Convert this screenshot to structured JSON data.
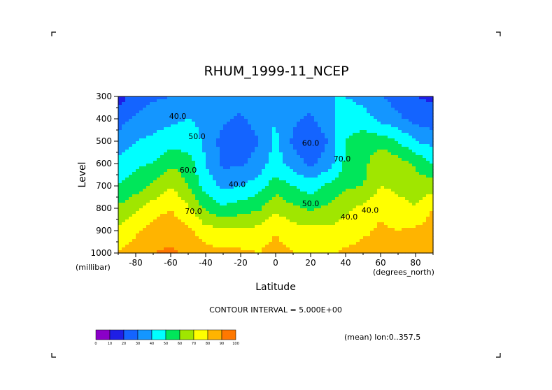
{
  "chart_data": {
    "type": "heatmap",
    "title": "RHUM_1999-11_NCEP",
    "xlabel": "Latitude",
    "ylabel": "Level",
    "x_units": "(degrees_north)",
    "y_units": "(millibar)",
    "xlim": [
      -90,
      90
    ],
    "ylim": [
      1000,
      300
    ],
    "x_ticks": [
      "-80",
      "-60",
      "-40",
      "-20",
      "0",
      "20",
      "40",
      "60",
      "80"
    ],
    "y_ticks": [
      "300",
      "400",
      "500",
      "600",
      "700",
      "800",
      "900",
      "1000"
    ],
    "contour_interval_text": "CONTOUR INTERVAL = 5.000E+00",
    "mean_text": "(mean) lon:0..357.5",
    "contour_labels": [
      "40.0",
      "50.0",
      "60.0",
      "70.0",
      "40.0",
      "50.0",
      "60.0",
      "70.0",
      "40.0",
      "40.0"
    ],
    "colorbar": {
      "labels": [
        "0",
        "10",
        "20",
        "30",
        "40",
        "50",
        "60",
        "70",
        "80",
        "90",
        "100"
      ],
      "colors": [
        "#8a00c8",
        "#1e1ee6",
        "#1464ff",
        "#1496ff",
        "#00ffff",
        "#00e65a",
        "#a0e600",
        "#ffff00",
        "#ffb400",
        "#ff7800",
        "#ff0000"
      ]
    },
    "latitudes": [
      -90,
      -80,
      -70,
      -60,
      -50,
      -40,
      -30,
      -20,
      -10,
      0,
      10,
      20,
      30,
      40,
      50,
      60,
      70,
      80,
      90
    ],
    "levels": [
      300,
      400,
      500,
      600,
      700,
      800,
      900,
      1000
    ],
    "rhum": [
      [
        15,
        24,
        28,
        30,
        34,
        38,
        38,
        36,
        38,
        40,
        38,
        36,
        40,
        40,
        36,
        30,
        26,
        20,
        18
      ],
      [
        25,
        32,
        36,
        38,
        40,
        38,
        32,
        28,
        34,
        40,
        32,
        28,
        36,
        46,
        45,
        37,
        32,
        26,
        24
      ],
      [
        35,
        40,
        42,
        45,
        45,
        38,
        26,
        22,
        30,
        42,
        28,
        22,
        30,
        50,
        55,
        55,
        50,
        40,
        36
      ],
      [
        42,
        48,
        50,
        58,
        55,
        40,
        28,
        28,
        34,
        45,
        35,
        28,
        35,
        52,
        56,
        70,
        65,
        58,
        50
      ],
      [
        50,
        55,
        62,
        70,
        60,
        45,
        38,
        40,
        45,
        55,
        50,
        45,
        52,
        58,
        60,
        70,
        68,
        66,
        64
      ],
      [
        62,
        68,
        75,
        80,
        72,
        58,
        52,
        55,
        58,
        68,
        62,
        58,
        62,
        68,
        72,
        78,
        73,
        70,
        80
      ],
      [
        72,
        78,
        85,
        86,
        82,
        74,
        72,
        72,
        73,
        79,
        74,
        73,
        72,
        74,
        78,
        82,
        80,
        82,
        85
      ],
      [
        80,
        86,
        90,
        92,
        88,
        84,
        82,
        82,
        80,
        84,
        80,
        80,
        78,
        82,
        84,
        82,
        80,
        86,
        88
      ]
    ]
  }
}
